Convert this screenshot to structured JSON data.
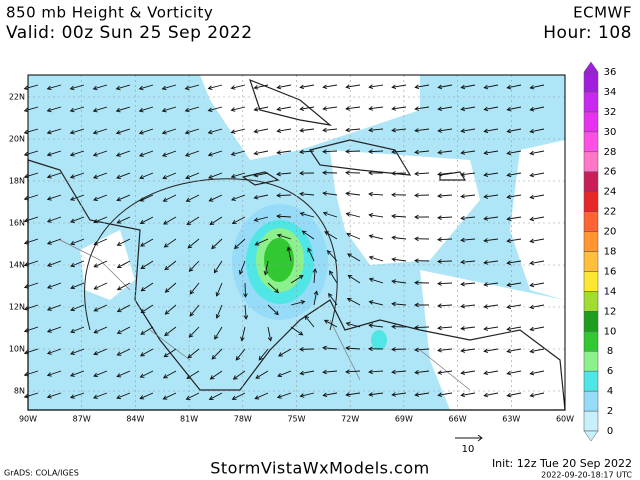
{
  "header": {
    "title": "850 mb Height & Vorticity",
    "valid": "Valid: 00z Sun 25 Sep 2022",
    "model": "ECMWF",
    "hour": "Hour: 108"
  },
  "map": {
    "lat_labels": [
      "22N",
      "20N",
      "18N",
      "16N",
      "14N",
      "12N",
      "10N",
      "8N"
    ],
    "lon_labels": [
      "90W",
      "87W",
      "84W",
      "81W",
      "78W",
      "75W",
      "72W",
      "69W",
      "66W",
      "63W",
      "60W"
    ],
    "vector_scale": "10"
  },
  "colorbar": {
    "levels": [
      0,
      2,
      4,
      6,
      8,
      10,
      12,
      14,
      16,
      18,
      20,
      22,
      24,
      26,
      28,
      30,
      32,
      34,
      36
    ],
    "colors": [
      "#c8f0fc",
      "#96dcf8",
      "#50e6e6",
      "#8cf08c",
      "#32c832",
      "#1e9e1e",
      "#a0dc32",
      "#ffe632",
      "#ffbe3c",
      "#ff9632",
      "#ff6432",
      "#e62828",
      "#c81e5a",
      "#ff78c8",
      "#ff50e6",
      "#e632f0",
      "#c828f0",
      "#a01edc"
    ]
  },
  "footer": {
    "credit": "GrADS: COLA/IGES",
    "site": "StormVistaWxModels.com",
    "init": "Init: 12z Tue 20 Sep 2022",
    "stamp": "2022-09-20-18:17 UTC"
  }
}
